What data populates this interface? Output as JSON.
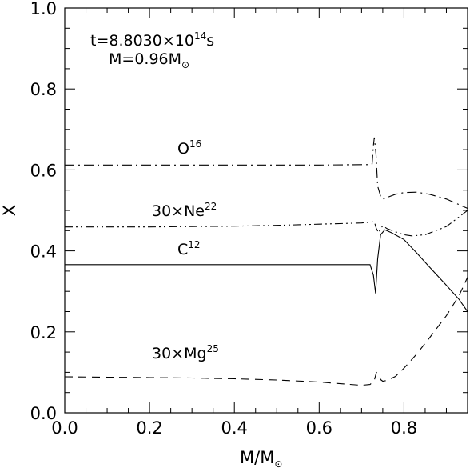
{
  "chart_data": {
    "type": "line",
    "xlabel": "M/M",
    "xlabel_subscript": "⊙",
    "ylabel": "X",
    "xlim": [
      0.0,
      0.95
    ],
    "ylim": [
      0.0,
      1.0
    ],
    "x_ticks": [
      "0.0",
      "0.2",
      "0.4",
      "0.6",
      "0.8"
    ],
    "x_tick_values": [
      0.0,
      0.2,
      0.4,
      0.6,
      0.8
    ],
    "y_ticks": [
      "0.0",
      "0.2",
      "0.4",
      "0.6",
      "0.8",
      "1.0"
    ],
    "y_tick_values": [
      0.0,
      0.2,
      0.4,
      0.6,
      0.8,
      1.0
    ],
    "annotations": {
      "time": {
        "text": "t=8.8030×10",
        "sup": "14",
        "after": "s"
      },
      "mass": {
        "text": "M=0.96M",
        "sub": "⊙"
      }
    },
    "series": [
      {
        "name": "O",
        "label_sup": "16",
        "style": "dashdot",
        "x": [
          0.0,
          0.1,
          0.2,
          0.3,
          0.4,
          0.5,
          0.6,
          0.7,
          0.72,
          0.725,
          0.728,
          0.73,
          0.734,
          0.738,
          0.745,
          0.75,
          0.76,
          0.78,
          0.8,
          0.83,
          0.86,
          0.9,
          0.95
        ],
        "y": [
          0.612,
          0.612,
          0.612,
          0.612,
          0.612,
          0.612,
          0.612,
          0.613,
          0.613,
          0.615,
          0.66,
          0.68,
          0.64,
          0.56,
          0.535,
          0.528,
          0.532,
          0.54,
          0.544,
          0.545,
          0.54,
          0.528,
          0.505
        ]
      },
      {
        "name": "30×Ne",
        "label_sup": "22",
        "style": "dashdot2",
        "x": [
          0.0,
          0.1,
          0.2,
          0.3,
          0.4,
          0.5,
          0.6,
          0.7,
          0.73,
          0.735,
          0.74,
          0.745,
          0.75,
          0.76,
          0.78,
          0.8,
          0.82,
          0.85,
          0.9,
          0.95
        ],
        "y": [
          0.459,
          0.459,
          0.459,
          0.46,
          0.461,
          0.463,
          0.466,
          0.469,
          0.472,
          0.455,
          0.445,
          0.455,
          0.462,
          0.455,
          0.447,
          0.44,
          0.437,
          0.44,
          0.46,
          0.5
        ]
      },
      {
        "name": "C",
        "label_sup": "12",
        "style": "solid",
        "x": [
          0.0,
          0.1,
          0.2,
          0.3,
          0.4,
          0.5,
          0.6,
          0.7,
          0.72,
          0.728,
          0.733,
          0.738,
          0.745,
          0.755,
          0.77,
          0.8,
          0.83,
          0.86,
          0.9,
          0.93,
          0.95
        ],
        "y": [
          0.366,
          0.366,
          0.366,
          0.366,
          0.366,
          0.366,
          0.366,
          0.366,
          0.366,
          0.34,
          0.295,
          0.38,
          0.44,
          0.452,
          0.445,
          0.428,
          0.395,
          0.36,
          0.315,
          0.28,
          0.25
        ]
      },
      {
        "name": "30×Mg",
        "label_sup": "25",
        "style": "dashed",
        "x": [
          0.0,
          0.1,
          0.2,
          0.3,
          0.4,
          0.5,
          0.6,
          0.65,
          0.7,
          0.72,
          0.73,
          0.735,
          0.74,
          0.745,
          0.75,
          0.76,
          0.78,
          0.8,
          0.83,
          0.86,
          0.9,
          0.93,
          0.95
        ],
        "y": [
          0.089,
          0.088,
          0.087,
          0.086,
          0.084,
          0.081,
          0.076,
          0.072,
          0.068,
          0.07,
          0.08,
          0.1,
          0.095,
          0.082,
          0.078,
          0.08,
          0.09,
          0.11,
          0.145,
          0.185,
          0.24,
          0.29,
          0.335
        ]
      }
    ]
  }
}
